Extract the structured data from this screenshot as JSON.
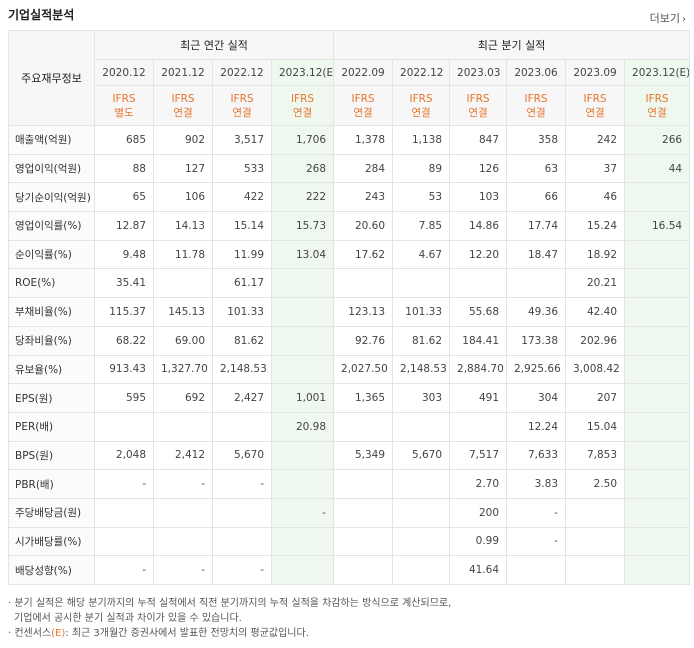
{
  "header": {
    "title": "기업실적분석",
    "more_label": "더보기",
    "more_arrow": "›"
  },
  "table": {
    "label_header": "주요재무정보",
    "group_annual": "최근 연간 실적",
    "group_quarter": "최근 분기 실적",
    "periods": [
      "2020.12",
      "2021.12",
      "2022.12",
      "2023.12(E)",
      "2022.09",
      "2022.12",
      "2023.03",
      "2023.06",
      "2023.09",
      "2023.12(E)"
    ],
    "ifrs": [
      [
        "IFRS",
        "별도"
      ],
      [
        "IFRS",
        "연결"
      ],
      [
        "IFRS",
        "연결"
      ],
      [
        "IFRS",
        "연결"
      ],
      [
        "IFRS",
        "연결"
      ],
      [
        "IFRS",
        "연결"
      ],
      [
        "IFRS",
        "연결"
      ],
      [
        "IFRS",
        "연결"
      ],
      [
        "IFRS",
        "연결"
      ],
      [
        "IFRS",
        "연결"
      ]
    ],
    "rows": [
      {
        "label": "매출액(억원)",
        "values": [
          "685",
          "902",
          "3,517",
          "1,706",
          "1,378",
          "1,138",
          "847",
          "358",
          "242",
          "266"
        ]
      },
      {
        "label": "영업이익(억원)",
        "values": [
          "88",
          "127",
          "533",
          "268",
          "284",
          "89",
          "126",
          "63",
          "37",
          "44"
        ]
      },
      {
        "label": "당기순이익(억원)",
        "values": [
          "65",
          "106",
          "422",
          "222",
          "243",
          "53",
          "103",
          "66",
          "46",
          ""
        ]
      },
      {
        "label": "영업이익률(%)",
        "values": [
          "12.87",
          "14.13",
          "15.14",
          "15.73",
          "20.60",
          "7.85",
          "14.86",
          "17.74",
          "15.24",
          "16.54"
        ]
      },
      {
        "label": "순이익률(%)",
        "values": [
          "9.48",
          "11.78",
          "11.99",
          "13.04",
          "17.62",
          "4.67",
          "12.20",
          "18.47",
          "18.92",
          ""
        ]
      },
      {
        "label": "ROE(%)",
        "values": [
          "35.41",
          "",
          "61.17",
          "",
          "",
          "",
          "",
          "",
          "20.21",
          ""
        ]
      },
      {
        "label": "부채비율(%)",
        "values": [
          "115.37",
          "145.13",
          "101.33",
          "",
          "123.13",
          "101.33",
          "55.68",
          "49.36",
          "42.40",
          ""
        ]
      },
      {
        "label": "당좌비율(%)",
        "values": [
          "68.22",
          "69.00",
          "81.62",
          "",
          "92.76",
          "81.62",
          "184.41",
          "173.38",
          "202.96",
          ""
        ]
      },
      {
        "label": "유보율(%)",
        "values": [
          "913.43",
          "1,327.70",
          "2,148.53",
          "",
          "2,027.50",
          "2,148.53",
          "2,884.70",
          "2,925.66",
          "3,008.42",
          ""
        ]
      },
      {
        "label": "EPS(원)",
        "values": [
          "595",
          "692",
          "2,427",
          "1,001",
          "1,365",
          "303",
          "491",
          "304",
          "207",
          ""
        ]
      },
      {
        "label": "PER(배)",
        "values": [
          "",
          "",
          "",
          "20.98",
          "",
          "",
          "",
          "12.24",
          "15.04",
          ""
        ]
      },
      {
        "label": "BPS(원)",
        "values": [
          "2,048",
          "2,412",
          "5,670",
          "",
          "5,349",
          "5,670",
          "7,517",
          "7,633",
          "7,853",
          ""
        ]
      },
      {
        "label": "PBR(배)",
        "values": [
          "-",
          "-",
          "-",
          "",
          "",
          "",
          "2.70",
          "3.83",
          "2.50",
          ""
        ]
      },
      {
        "label": "주당배당금(원)",
        "values": [
          "",
          "",
          "",
          "-",
          "",
          "",
          "200",
          "-",
          "",
          ""
        ]
      },
      {
        "label": "시가배당률(%)",
        "values": [
          "",
          "",
          "",
          "",
          "",
          "",
          "0.99",
          "-",
          "",
          ""
        ]
      },
      {
        "label": "배당성향(%)",
        "values": [
          "-",
          "-",
          "-",
          "",
          "",
          "",
          "41.64",
          "",
          "",
          ""
        ]
      }
    ]
  },
  "notes": {
    "line1": "· 분기 실적은 해당 분기까지의 누적 실적에서 직전 분기까지의 누적 실적을 차감하는 방식으로 계산되므로,",
    "line2": "기업에서 공시한 분기 실적과 차이가 있을 수 있습니다.",
    "line3_prefix": "· 컨센서스",
    "line3_mark": "(E)",
    "line3_suffix": ": 최근 3개월간 증권사에서 발표한 전망치의 평균값입니다."
  }
}
